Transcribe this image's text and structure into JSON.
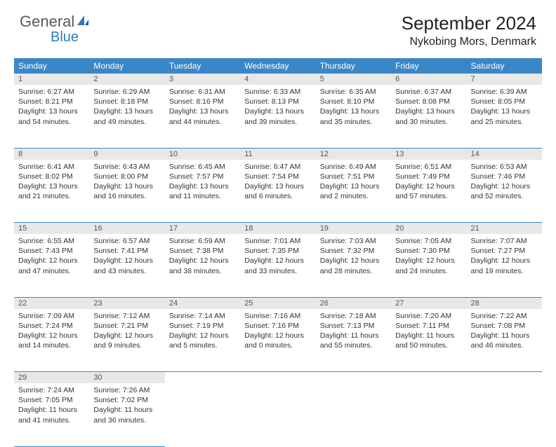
{
  "logo": {
    "text1": "General",
    "text2": "Blue"
  },
  "title": "September 2024",
  "location": "Nykobing Mors, Denmark",
  "colors": {
    "header_bg": "#3a87c8",
    "header_text": "#ffffff",
    "daynum_bg": "#e8e8e8",
    "border": "#3a87c8",
    "logo_gray": "#5a5a5a",
    "logo_blue": "#2f7bbf"
  },
  "weekdays": [
    "Sunday",
    "Monday",
    "Tuesday",
    "Wednesday",
    "Thursday",
    "Friday",
    "Saturday"
  ],
  "weeks": [
    {
      "nums": [
        "1",
        "2",
        "3",
        "4",
        "5",
        "6",
        "7"
      ],
      "cells": [
        {
          "sunrise": "6:27 AM",
          "sunset": "8:21 PM",
          "daylight": "13 hours and 54 minutes."
        },
        {
          "sunrise": "6:29 AM",
          "sunset": "8:18 PM",
          "daylight": "13 hours and 49 minutes."
        },
        {
          "sunrise": "6:31 AM",
          "sunset": "8:16 PM",
          "daylight": "13 hours and 44 minutes."
        },
        {
          "sunrise": "6:33 AM",
          "sunset": "8:13 PM",
          "daylight": "13 hours and 39 minutes."
        },
        {
          "sunrise": "6:35 AM",
          "sunset": "8:10 PM",
          "daylight": "13 hours and 35 minutes."
        },
        {
          "sunrise": "6:37 AM",
          "sunset": "8:08 PM",
          "daylight": "13 hours and 30 minutes."
        },
        {
          "sunrise": "6:39 AM",
          "sunset": "8:05 PM",
          "daylight": "13 hours and 25 minutes."
        }
      ]
    },
    {
      "nums": [
        "8",
        "9",
        "10",
        "11",
        "12",
        "13",
        "14"
      ],
      "cells": [
        {
          "sunrise": "6:41 AM",
          "sunset": "8:02 PM",
          "daylight": "13 hours and 21 minutes."
        },
        {
          "sunrise": "6:43 AM",
          "sunset": "8:00 PM",
          "daylight": "13 hours and 16 minutes."
        },
        {
          "sunrise": "6:45 AM",
          "sunset": "7:57 PM",
          "daylight": "13 hours and 11 minutes."
        },
        {
          "sunrise": "6:47 AM",
          "sunset": "7:54 PM",
          "daylight": "13 hours and 6 minutes."
        },
        {
          "sunrise": "6:49 AM",
          "sunset": "7:51 PM",
          "daylight": "13 hours and 2 minutes."
        },
        {
          "sunrise": "6:51 AM",
          "sunset": "7:49 PM",
          "daylight": "12 hours and 57 minutes."
        },
        {
          "sunrise": "6:53 AM",
          "sunset": "7:46 PM",
          "daylight": "12 hours and 52 minutes."
        }
      ]
    },
    {
      "nums": [
        "15",
        "16",
        "17",
        "18",
        "19",
        "20",
        "21"
      ],
      "cells": [
        {
          "sunrise": "6:55 AM",
          "sunset": "7:43 PM",
          "daylight": "12 hours and 47 minutes."
        },
        {
          "sunrise": "6:57 AM",
          "sunset": "7:41 PM",
          "daylight": "12 hours and 43 minutes."
        },
        {
          "sunrise": "6:59 AM",
          "sunset": "7:38 PM",
          "daylight": "12 hours and 38 minutes."
        },
        {
          "sunrise": "7:01 AM",
          "sunset": "7:35 PM",
          "daylight": "12 hours and 33 minutes."
        },
        {
          "sunrise": "7:03 AM",
          "sunset": "7:32 PM",
          "daylight": "12 hours and 28 minutes."
        },
        {
          "sunrise": "7:05 AM",
          "sunset": "7:30 PM",
          "daylight": "12 hours and 24 minutes."
        },
        {
          "sunrise": "7:07 AM",
          "sunset": "7:27 PM",
          "daylight": "12 hours and 19 minutes."
        }
      ]
    },
    {
      "nums": [
        "22",
        "23",
        "24",
        "25",
        "26",
        "27",
        "28"
      ],
      "cells": [
        {
          "sunrise": "7:09 AM",
          "sunset": "7:24 PM",
          "daylight": "12 hours and 14 minutes."
        },
        {
          "sunrise": "7:12 AM",
          "sunset": "7:21 PM",
          "daylight": "12 hours and 9 minutes."
        },
        {
          "sunrise": "7:14 AM",
          "sunset": "7:19 PM",
          "daylight": "12 hours and 5 minutes."
        },
        {
          "sunrise": "7:16 AM",
          "sunset": "7:16 PM",
          "daylight": "12 hours and 0 minutes."
        },
        {
          "sunrise": "7:18 AM",
          "sunset": "7:13 PM",
          "daylight": "11 hours and 55 minutes."
        },
        {
          "sunrise": "7:20 AM",
          "sunset": "7:11 PM",
          "daylight": "11 hours and 50 minutes."
        },
        {
          "sunrise": "7:22 AM",
          "sunset": "7:08 PM",
          "daylight": "11 hours and 46 minutes."
        }
      ]
    },
    {
      "nums": [
        "29",
        "30",
        "",
        "",
        "",
        "",
        ""
      ],
      "cells": [
        {
          "sunrise": "7:24 AM",
          "sunset": "7:05 PM",
          "daylight": "11 hours and 41 minutes."
        },
        {
          "sunrise": "7:26 AM",
          "sunset": "7:02 PM",
          "daylight": "11 hours and 36 minutes."
        },
        null,
        null,
        null,
        null,
        null
      ]
    }
  ]
}
